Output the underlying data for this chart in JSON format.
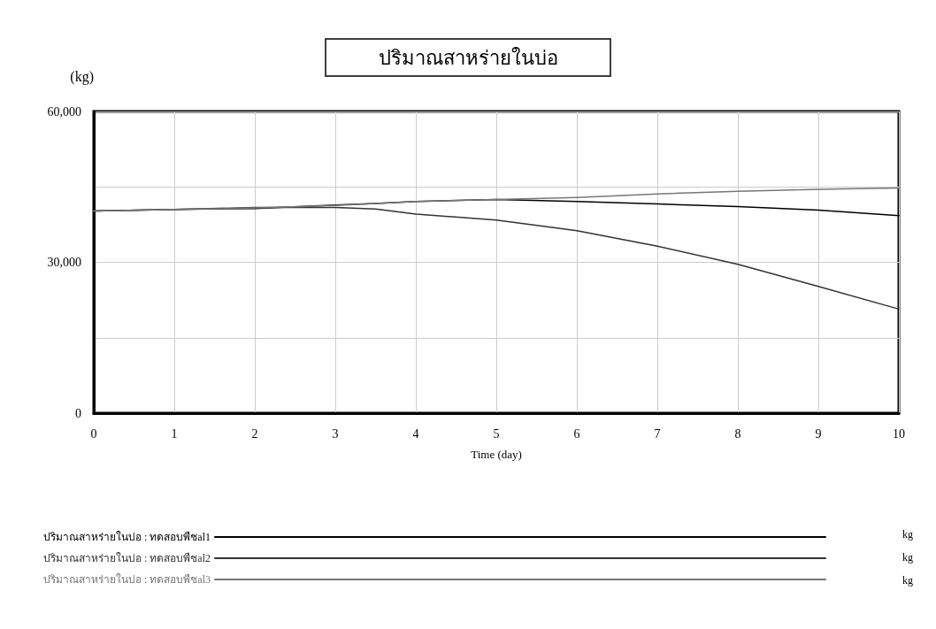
{
  "chart_data": {
    "type": "line",
    "title": "ปริมาณสาหร่ายในบ่อ",
    "xlabel": "Time (day)",
    "ylabel": "(kg)",
    "x": [
      0,
      1,
      2,
      3,
      3.5,
      4,
      5,
      6,
      7,
      8,
      9,
      10
    ],
    "series": [
      {
        "name": "ปริมาณสาหร่ายในบ่อ : ทดสอบพืชal1",
        "color": "#000000",
        "values": [
          40200,
          40500,
          40700,
          41400,
          41700,
          42100,
          42500,
          42100,
          41600,
          41100,
          40400,
          39300
        ]
      },
      {
        "name": "ปริมาณสาหร่ายในบ่อ : ทดสอบพืชal2",
        "color": "#333333",
        "values": [
          40200,
          40500,
          40900,
          40900,
          40600,
          39600,
          38400,
          36300,
          33200,
          29600,
          25200,
          20700
        ]
      },
      {
        "name": "ปริมาณสาหร่ายในบ่อ : ทดสอบพืชal3",
        "color": "#777777",
        "values": [
          40200,
          40500,
          40800,
          41300,
          41700,
          42100,
          42500,
          42900,
          43600,
          44100,
          44500,
          44800
        ]
      }
    ],
    "xlim": [
      0,
      10
    ],
    "xticks": [
      0,
      1,
      2,
      3,
      4,
      5,
      6,
      7,
      8,
      9,
      10
    ],
    "ylim": [
      0,
      60000
    ],
    "yticks": [
      0,
      {
        "value": 15000,
        "label": null
      },
      {
        "value": 30000,
        "label": "30,000"
      },
      {
        "value": 45000,
        "label": null
      },
      {
        "value": 60000,
        "label": "60,000"
      }
    ],
    "grid": true,
    "legend": "bottom",
    "marker": "none",
    "line_style": "solid",
    "annotations": [
      "kg",
      "kg",
      "kg"
    ]
  }
}
